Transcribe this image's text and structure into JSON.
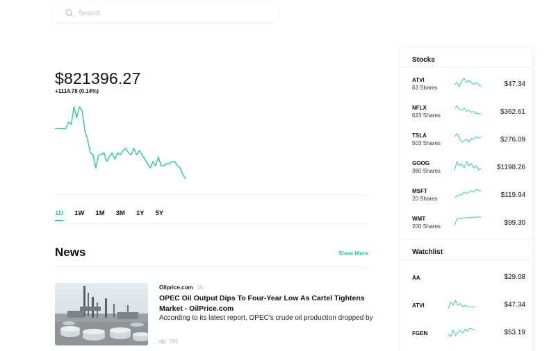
{
  "search": {
    "placeholder": "Search"
  },
  "portfolio": {
    "value": "$821396.27",
    "change": "+1114.78 (0.14%)"
  },
  "chart_data": {
    "type": "line",
    "x": [
      0,
      1,
      2,
      3,
      4,
      5,
      6,
      7,
      8,
      9,
      10,
      11,
      12,
      13,
      14,
      15,
      16,
      17,
      18,
      19,
      20,
      21,
      22,
      23,
      24,
      25,
      26,
      27,
      28,
      29,
      30,
      31,
      32,
      33,
      34,
      35,
      36,
      37,
      38,
      39,
      40,
      41,
      42,
      43,
      44,
      45,
      46,
      47,
      48
    ],
    "values": [
      821100,
      821100,
      821100,
      821100,
      821100,
      821130,
      821120,
      821200,
      821150,
      821200,
      821180,
      821090,
      821050,
      820990,
      820980,
      820920,
      820980,
      820980,
      820990,
      820950,
      820970,
      820990,
      820960,
      820990,
      820980,
      821000,
      821010,
      820990,
      820980,
      821010,
      820980,
      821000,
      820980,
      820960,
      820940,
      820920,
      820950,
      820930,
      820970,
      820930,
      820930,
      820940,
      820940,
      820950,
      820950,
      820930,
      820920,
      820890,
      820870
    ],
    "ranges": [
      "1D",
      "1W",
      "1M",
      "3M",
      "1Y",
      "5Y"
    ],
    "active_range": "1D",
    "color": "#21ce99"
  },
  "news": {
    "title": "News",
    "show_more": "Show More",
    "items": [
      {
        "source": "Oilprice.com",
        "time": "1h",
        "headline": "OPEC Oil Output Dips To Four-Year Low As Cartel Tightens Market - OilPrice.com",
        "summary": "According to its latest report, OPEC's crude oil production dropped by",
        "views": "765"
      }
    ]
  },
  "stocks": {
    "title": "Stocks",
    "items": [
      {
        "symbol": "ATVI",
        "shares": "63 Shares",
        "price": "$47.34",
        "spark": [
          5,
          4,
          6,
          3,
          2,
          4,
          3,
          4,
          5,
          4,
          5,
          6
        ]
      },
      {
        "symbol": "NFLX",
        "shares": "623 Shares",
        "price": "$362.61",
        "spark": [
          2,
          0,
          3,
          4,
          2,
          5,
          4,
          6,
          5,
          7,
          7,
          8
        ]
      },
      {
        "symbol": "TSLA",
        "shares": "503 Shares",
        "price": "$276.09",
        "spark": [
          3,
          1,
          4,
          7,
          6,
          5,
          7,
          4,
          5,
          3,
          4,
          3
        ]
      },
      {
        "symbol": "GOOG",
        "shares": "360 Shares",
        "price": "$1198.26",
        "spark": [
          6,
          2,
          4,
          3,
          5,
          2,
          4,
          3,
          5,
          4,
          6,
          5
        ]
      },
      {
        "symbol": "MSFT",
        "shares": "20 Shares",
        "price": "$119.94",
        "spark": [
          8,
          7,
          6,
          6,
          4,
          5,
          4,
          3,
          4,
          2,
          3,
          3
        ]
      },
      {
        "symbol": "WMT",
        "shares": "200 Shares",
        "price": "$99.30",
        "spark": [
          11,
          3,
          3,
          2,
          2,
          2,
          1,
          2,
          1,
          1,
          1,
          1
        ]
      }
    ]
  },
  "watchlist": {
    "title": "Watchlist",
    "items": [
      {
        "symbol": "AA",
        "price": "$29.08",
        "spark": []
      },
      {
        "symbol": "ATVI",
        "price": "$47.34",
        "spark": [
          6,
          2,
          4,
          1,
          4,
          3,
          5,
          4,
          5,
          5,
          5,
          5
        ]
      },
      {
        "symbol": "FGEN",
        "price": "$53.19",
        "spark": [
          7,
          9,
          3,
          8,
          5,
          3,
          6,
          2,
          4,
          1,
          2,
          3
        ]
      }
    ]
  }
}
